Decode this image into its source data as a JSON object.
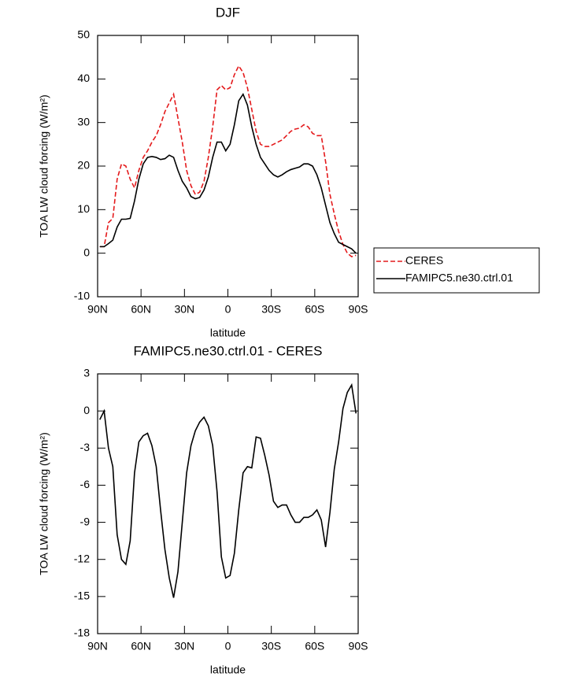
{
  "chart_data": [
    {
      "type": "line",
      "title": "DJF",
      "xlabel": "latitude",
      "ylabel": "TOA LW cloud forcing (W/m²)",
      "xlim": [
        90,
        -90
      ],
      "xticks": [
        {
          "value": 90,
          "label": "90N"
        },
        {
          "value": 60,
          "label": "60N"
        },
        {
          "value": 30,
          "label": "30N"
        },
        0,
        {
          "value": -30,
          "label": "30S"
        },
        {
          "value": -60,
          "label": "60S"
        },
        {
          "value": -90,
          "label": "90S"
        }
      ],
      "ylim": [
        -10,
        50
      ],
      "yticks": [
        -10,
        0,
        10,
        20,
        30,
        40,
        50
      ],
      "legend": "right",
      "x": [
        88.5,
        85.5,
        82.5,
        79.5,
        76.5,
        73.5,
        70.5,
        67.5,
        64.5,
        61.5,
        58.5,
        55.5,
        52.5,
        49.5,
        46.5,
        43.5,
        40.5,
        37.5,
        34.5,
        31.5,
        28.5,
        25.5,
        22.5,
        19.5,
        16.5,
        13.5,
        10.5,
        7.5,
        4.5,
        1.5,
        -1.5,
        -4.5,
        -7.5,
        -10.5,
        -13.5,
        -16.5,
        -19.5,
        -22.5,
        -25.5,
        -28.5,
        -31.5,
        -34.5,
        -37.5,
        -40.5,
        -43.5,
        -46.5,
        -49.5,
        -52.5,
        -55.5,
        -58.5,
        -61.5,
        -64.5,
        -67.5,
        -70.5,
        -73.5,
        -76.5,
        -79.5,
        -82.5,
        -85.5,
        -88.5
      ],
      "series": [
        {
          "name": "CERES",
          "color": "#e41a1c",
          "line_style": "dashed",
          "values": [
            1.5,
            1.5,
            7,
            8,
            17,
            20.5,
            20,
            17,
            15,
            19,
            22,
            23.5,
            25.5,
            27,
            29.5,
            32.5,
            34.5,
            36.5,
            31,
            25.5,
            19,
            15.5,
            13.5,
            14,
            16.5,
            22,
            29,
            37.5,
            38.5,
            37.5,
            38,
            41,
            43,
            41.5,
            38,
            33,
            28,
            25,
            24.5,
            24.5,
            25,
            25.5,
            26,
            27,
            28,
            28.5,
            28.7,
            29.5,
            29,
            27.5,
            27,
            27,
            21,
            13.5,
            9,
            5,
            2,
            0,
            -0.8,
            -0.5
          ]
        },
        {
          "name": "FAMIPC5.ne30.ctrl.01",
          "color": "#000000",
          "line_style": "solid",
          "values": [
            1.5,
            1.5,
            2.2,
            3,
            6,
            7.8,
            7.8,
            8,
            12,
            17,
            20.5,
            22,
            22.2,
            22,
            21.5,
            21.7,
            22.5,
            22,
            19,
            16.5,
            15,
            13,
            12.5,
            12.8,
            14.5,
            17.5,
            22,
            25.5,
            25.5,
            23.5,
            25,
            29.5,
            35,
            36.5,
            34,
            29,
            25,
            22,
            20.5,
            19,
            18,
            17.5,
            18,
            18.7,
            19.2,
            19.5,
            19.8,
            20.5,
            20.5,
            20,
            18,
            15,
            11,
            7,
            4.5,
            2.5,
            2,
            1.5,
            1,
            0
          ]
        }
      ]
    },
    {
      "type": "line",
      "title": "FAMIPC5.ne30.ctrl.01 - CERES",
      "xlabel": "latitude",
      "ylabel": "TOA LW cloud forcing (W/m²)",
      "xlim": [
        90,
        -90
      ],
      "xticks": [
        {
          "value": 90,
          "label": "90N"
        },
        {
          "value": 60,
          "label": "60N"
        },
        {
          "value": 30,
          "label": "30N"
        },
        0,
        {
          "value": -30,
          "label": "30S"
        },
        {
          "value": -60,
          "label": "60S"
        },
        {
          "value": -90,
          "label": "90S"
        }
      ],
      "ylim": [
        -18,
        3
      ],
      "yticks": [
        -18,
        -15,
        -12,
        -9,
        -6,
        -3,
        0,
        3
      ],
      "x": [
        88.5,
        85.5,
        82.5,
        79.5,
        76.5,
        73.5,
        70.5,
        67.5,
        64.5,
        61.5,
        58.5,
        55.5,
        52.5,
        49.5,
        46.5,
        43.5,
        40.5,
        37.5,
        34.5,
        31.5,
        28.5,
        25.5,
        22.5,
        19.5,
        16.5,
        13.5,
        10.5,
        7.5,
        4.5,
        1.5,
        -1.5,
        -4.5,
        -7.5,
        -10.5,
        -13.5,
        -16.5,
        -19.5,
        -22.5,
        -25.5,
        -28.5,
        -31.5,
        -34.5,
        -37.5,
        -40.5,
        -43.5,
        -46.5,
        -49.5,
        -52.5,
        -55.5,
        -58.5,
        -61.5,
        -64.5,
        -67.5,
        -70.5,
        -73.5,
        -76.5,
        -79.5,
        -82.5,
        -85.5,
        -88.5
      ],
      "series": [
        {
          "color": "#000000",
          "line_style": "solid",
          "values": [
            -0.7,
            0,
            -3,
            -4.5,
            -10,
            -12,
            -12.4,
            -10.5,
            -5,
            -2.5,
            -2,
            -1.8,
            -2.8,
            -4.5,
            -8,
            -11.2,
            -13.5,
            -15.1,
            -13,
            -9,
            -5,
            -2.8,
            -1.6,
            -0.9,
            -0.5,
            -1.2,
            -2.8,
            -6.5,
            -11.8,
            -13.5,
            -13.3,
            -11.5,
            -8,
            -5,
            -4.5,
            -4.6,
            -2.1,
            -2.2,
            -3.6,
            -5.2,
            -7.3,
            -7.8,
            -7.6,
            -7.6,
            -8.4,
            -9,
            -9,
            -8.6,
            -8.6,
            -8.4,
            -8,
            -8.8,
            -11,
            -8.2,
            -4.7,
            -2.5,
            0.2,
            1.5,
            2.1,
            -0.2
          ]
        }
      ]
    }
  ]
}
